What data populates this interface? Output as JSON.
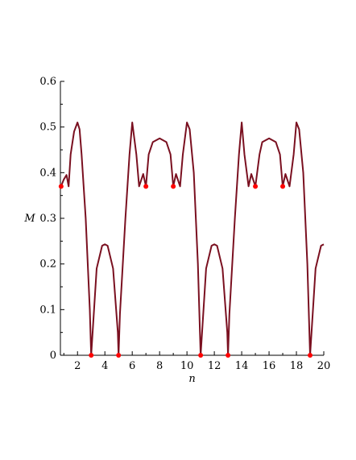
{
  "chart_data": {
    "type": "line",
    "title": "",
    "xlabel": "n",
    "ylabel": "M",
    "xlim": [
      0.75,
      20
    ],
    "ylim": [
      0,
      0.6
    ],
    "x_ticks": [
      2,
      4,
      6,
      8,
      10,
      12,
      14,
      16,
      18,
      20
    ],
    "y_ticks": [
      0,
      0.1,
      0.2,
      0.3,
      0.4,
      0.5,
      0.6
    ],
    "x_tick_labels": [
      "2",
      "4",
      "6",
      "8",
      "10",
      "12",
      "14",
      "16",
      "18",
      "20"
    ],
    "y_tick_labels": [
      "0",
      "0.1",
      "0.2",
      "0.3",
      "0.4",
      "0.5",
      "0.6"
    ],
    "grid": false,
    "legend": "none",
    "colors": {
      "curve": "#7a1020",
      "points": "#ff0000"
    },
    "series": [
      {
        "type": "line",
        "x": [
          0.8,
          1.0,
          1.2,
          1.35,
          1.5,
          1.75,
          2.0,
          2.15,
          2.3,
          2.6,
          2.9,
          3.0,
          3.4,
          3.8,
          4.0,
          4.2,
          4.6,
          4.95,
          5.0,
          5.1,
          5.5,
          5.8,
          6.0,
          6.3,
          6.5,
          6.8,
          7.0,
          7.2,
          7.5,
          8.0,
          8.5,
          8.8,
          9.0,
          9.2,
          9.5,
          9.7,
          10.0,
          10.2,
          10.5,
          10.8,
          11.0,
          11.4,
          11.8,
          12.0,
          12.2,
          12.6,
          12.95,
          13.0,
          13.1,
          13.5,
          13.8,
          14.0,
          14.2,
          14.5,
          14.7,
          15.0,
          15.3,
          15.5,
          16.0,
          16.5,
          16.8,
          17.0,
          17.2,
          17.5,
          17.8,
          18.0,
          18.2,
          18.5,
          18.8,
          19.0,
          19.4,
          19.8,
          20.0
        ],
        "y": [
          0.37,
          0.385,
          0.395,
          0.37,
          0.44,
          0.49,
          0.51,
          0.495,
          0.44,
          0.3,
          0.1,
          0,
          0.19,
          0.24,
          0.243,
          0.24,
          0.19,
          0.05,
          0,
          0.09,
          0.3,
          0.44,
          0.51,
          0.44,
          0.37,
          0.397,
          0.37,
          0.44,
          0.467,
          0.475,
          0.467,
          0.44,
          0.37,
          0.397,
          0.37,
          0.44,
          0.51,
          0.495,
          0.4,
          0.2,
          0,
          0.19,
          0.24,
          0.243,
          0.24,
          0.19,
          0.05,
          0,
          0.09,
          0.3,
          0.44,
          0.51,
          0.44,
          0.37,
          0.397,
          0.37,
          0.44,
          0.467,
          0.475,
          0.467,
          0.44,
          0.37,
          0.397,
          0.37,
          0.44,
          0.51,
          0.495,
          0.4,
          0.2,
          0,
          0.19,
          0.24,
          0.243
        ]
      },
      {
        "type": "scatter",
        "x": [
          0.8,
          3,
          5,
          7,
          9,
          11,
          13,
          15,
          17,
          19
        ],
        "y": [
          0.37,
          0,
          0,
          0.37,
          0.37,
          0,
          0,
          0.37,
          0.37,
          0
        ]
      }
    ]
  }
}
